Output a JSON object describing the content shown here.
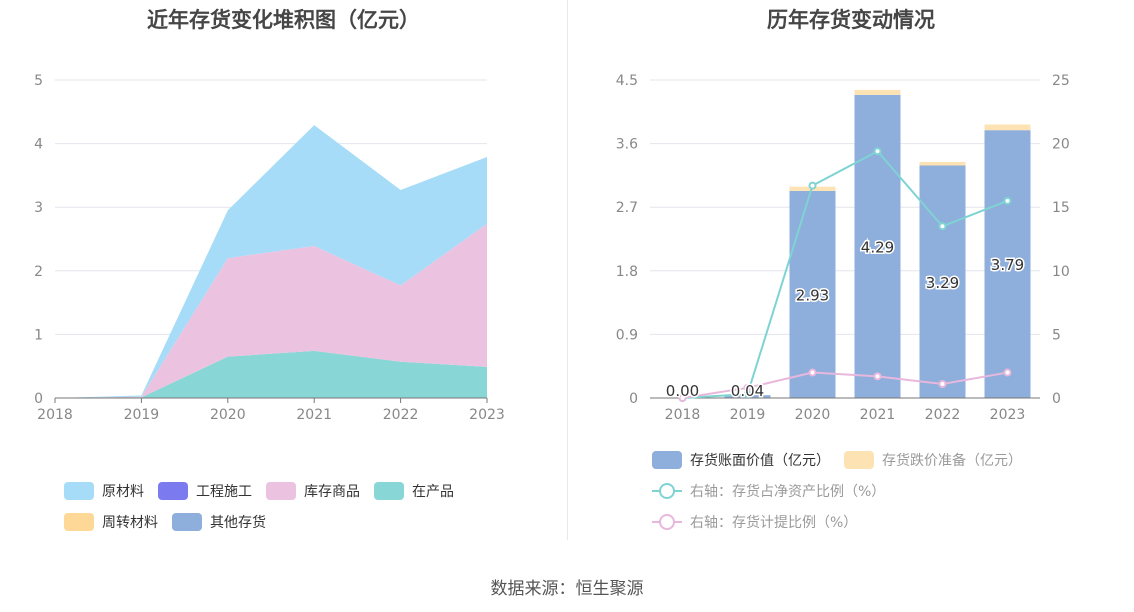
{
  "source_label": "数据来源：恒生聚源",
  "chart_data": [
    {
      "id": "left",
      "type": "area",
      "stacked": true,
      "title": "近年存货变化堆积图（亿元）",
      "x": [
        "2018",
        "2019",
        "2020",
        "2021",
        "2022",
        "2023"
      ],
      "yticks": [
        "0",
        "1",
        "2",
        "3",
        "4",
        "5"
      ],
      "ylim": [
        0,
        5
      ],
      "grid": true,
      "legend_position": "bottom",
      "series": [
        {
          "name": "原材料",
          "color": "#a6dcf8",
          "values": [
            0,
            0.02,
            0.75,
            1.9,
            1.5,
            1.05
          ]
        },
        {
          "name": "工程施工",
          "color": "#7b7bef",
          "values": [
            0,
            0,
            0,
            0,
            0,
            0
          ]
        },
        {
          "name": "库存商品",
          "color": "#ebc3e0",
          "values": [
            0,
            0.01,
            1.55,
            1.65,
            1.2,
            2.25
          ]
        },
        {
          "name": "在产品",
          "color": "#88d6d6",
          "values": [
            0,
            0.01,
            0.65,
            0.74,
            0.57,
            0.49
          ]
        },
        {
          "name": "周转材料",
          "color": "#fdd897",
          "values": [
            0,
            0,
            0,
            0,
            0,
            0
          ]
        },
        {
          "name": "其他存货",
          "color": "#8eaedc",
          "values": [
            0,
            0,
            0,
            0,
            0,
            0
          ]
        }
      ]
    },
    {
      "id": "right",
      "type": "bar",
      "title": "历年存货变动情况",
      "categories": [
        "2018",
        "2019",
        "2020",
        "2021",
        "2022",
        "2023"
      ],
      "yticks_left": [
        "0",
        "0.9",
        "1.8",
        "2.7",
        "3.6",
        "4.5"
      ],
      "ylim_left": [
        0,
        4.5
      ],
      "yticks_right": [
        "0",
        "5",
        "10",
        "15",
        "20",
        "25"
      ],
      "ylim_right": [
        0,
        25
      ],
      "grid": true,
      "legend_position": "bottom",
      "bars": [
        {
          "name": "存货账面价值（亿元）",
          "color": "#8eaedc",
          "values": [
            0.0,
            0.04,
            2.93,
            4.29,
            3.29,
            3.79
          ]
        },
        {
          "name": "存货跌价准备（亿元）",
          "color": "#fde3b3",
          "values": [
            0.0,
            0.0,
            0.06,
            0.07,
            0.05,
            0.08
          ]
        }
      ],
      "bar_labels": [
        "0.00",
        "0.04",
        "2.93",
        "4.29",
        "3.29",
        "3.79"
      ],
      "lines": [
        {
          "name": "右轴：存货占净资产比例（%）",
          "color": "#7fd3d3",
          "axis": "right",
          "values": [
            0.0,
            0.3,
            16.7,
            19.4,
            13.5,
            15.5
          ]
        },
        {
          "name": "右轴：存货计提比例（%）",
          "color": "#e8b8dc",
          "axis": "right",
          "values": [
            0.0,
            0.8,
            2.0,
            1.7,
            1.1,
            2.0
          ]
        }
      ]
    }
  ]
}
